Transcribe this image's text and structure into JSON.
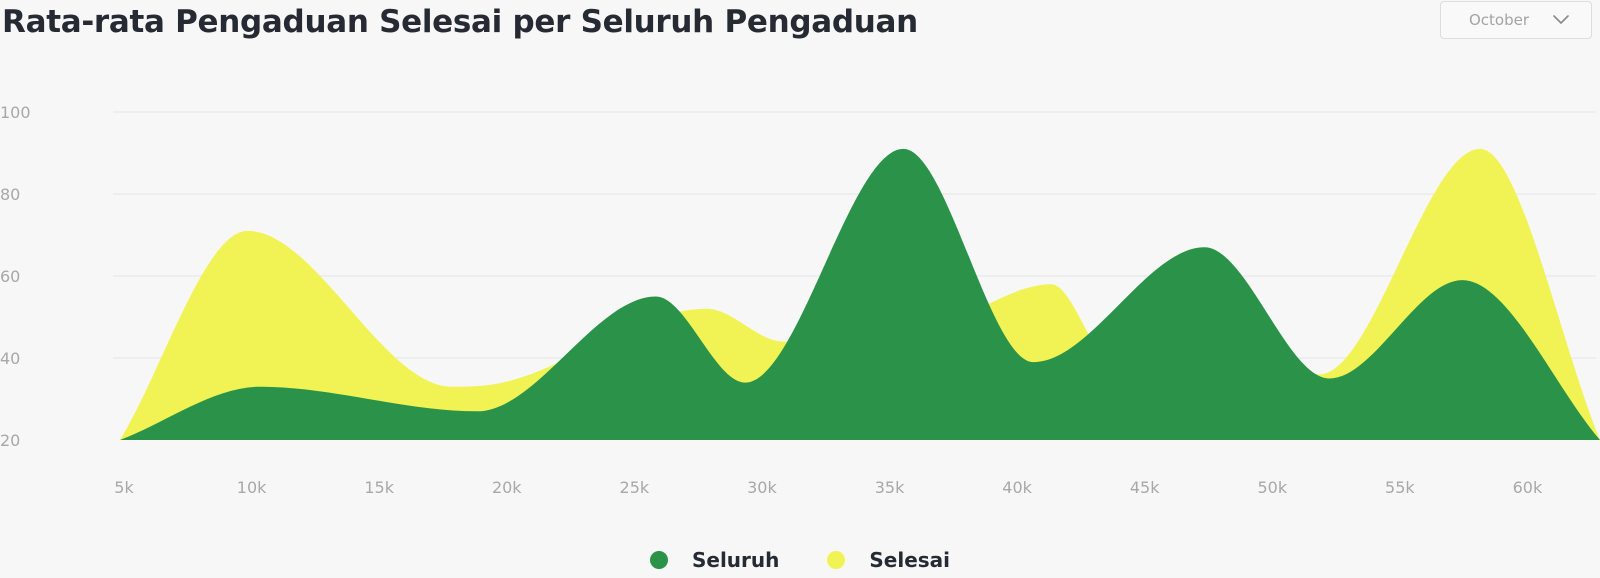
{
  "filter": {
    "selected": "October",
    "icon": "chevron-down-icon"
  },
  "chart_data": {
    "type": "area",
    "title": "Rata-rata Pengaduan Selesai per Seluruh Pengaduan",
    "xlabel": "",
    "ylabel": "",
    "x_ticks": [
      "5k",
      "10k",
      "15k",
      "20k",
      "25k",
      "30k",
      "35k",
      "40k",
      "45k",
      "50k",
      "55k",
      "60k"
    ],
    "xlim": [
      5000,
      63000
    ],
    "ylim": [
      20,
      100
    ],
    "y_ticks": [
      20,
      40,
      60,
      80,
      100
    ],
    "grid": true,
    "legend_position": "bottom",
    "curve": "smooth",
    "series": [
      {
        "name": "Selesai",
        "color": "#f0f353",
        "x": [
          5000,
          10000,
          18000,
          20000,
          28000,
          31000,
          37000,
          41500,
          44000,
          52000,
          58300,
          63000
        ],
        "y": [
          20,
          71,
          33,
          34,
          52,
          44,
          48,
          58,
          38,
          36,
          91,
          20
        ]
      },
      {
        "name": "Seluruh",
        "color": "#2b9349",
        "x": [
          5000,
          10500,
          19000,
          26000,
          29500,
          35700,
          40800,
          47500,
          52400,
          57600,
          63000
        ],
        "y": [
          20,
          33,
          27,
          55,
          34,
          91,
          39,
          67,
          35,
          59,
          20
        ]
      }
    ],
    "legend": [
      {
        "label": "Seluruh",
        "color": "#2b9349"
      },
      {
        "label": "Selesai",
        "color": "#f0f353"
      }
    ]
  }
}
